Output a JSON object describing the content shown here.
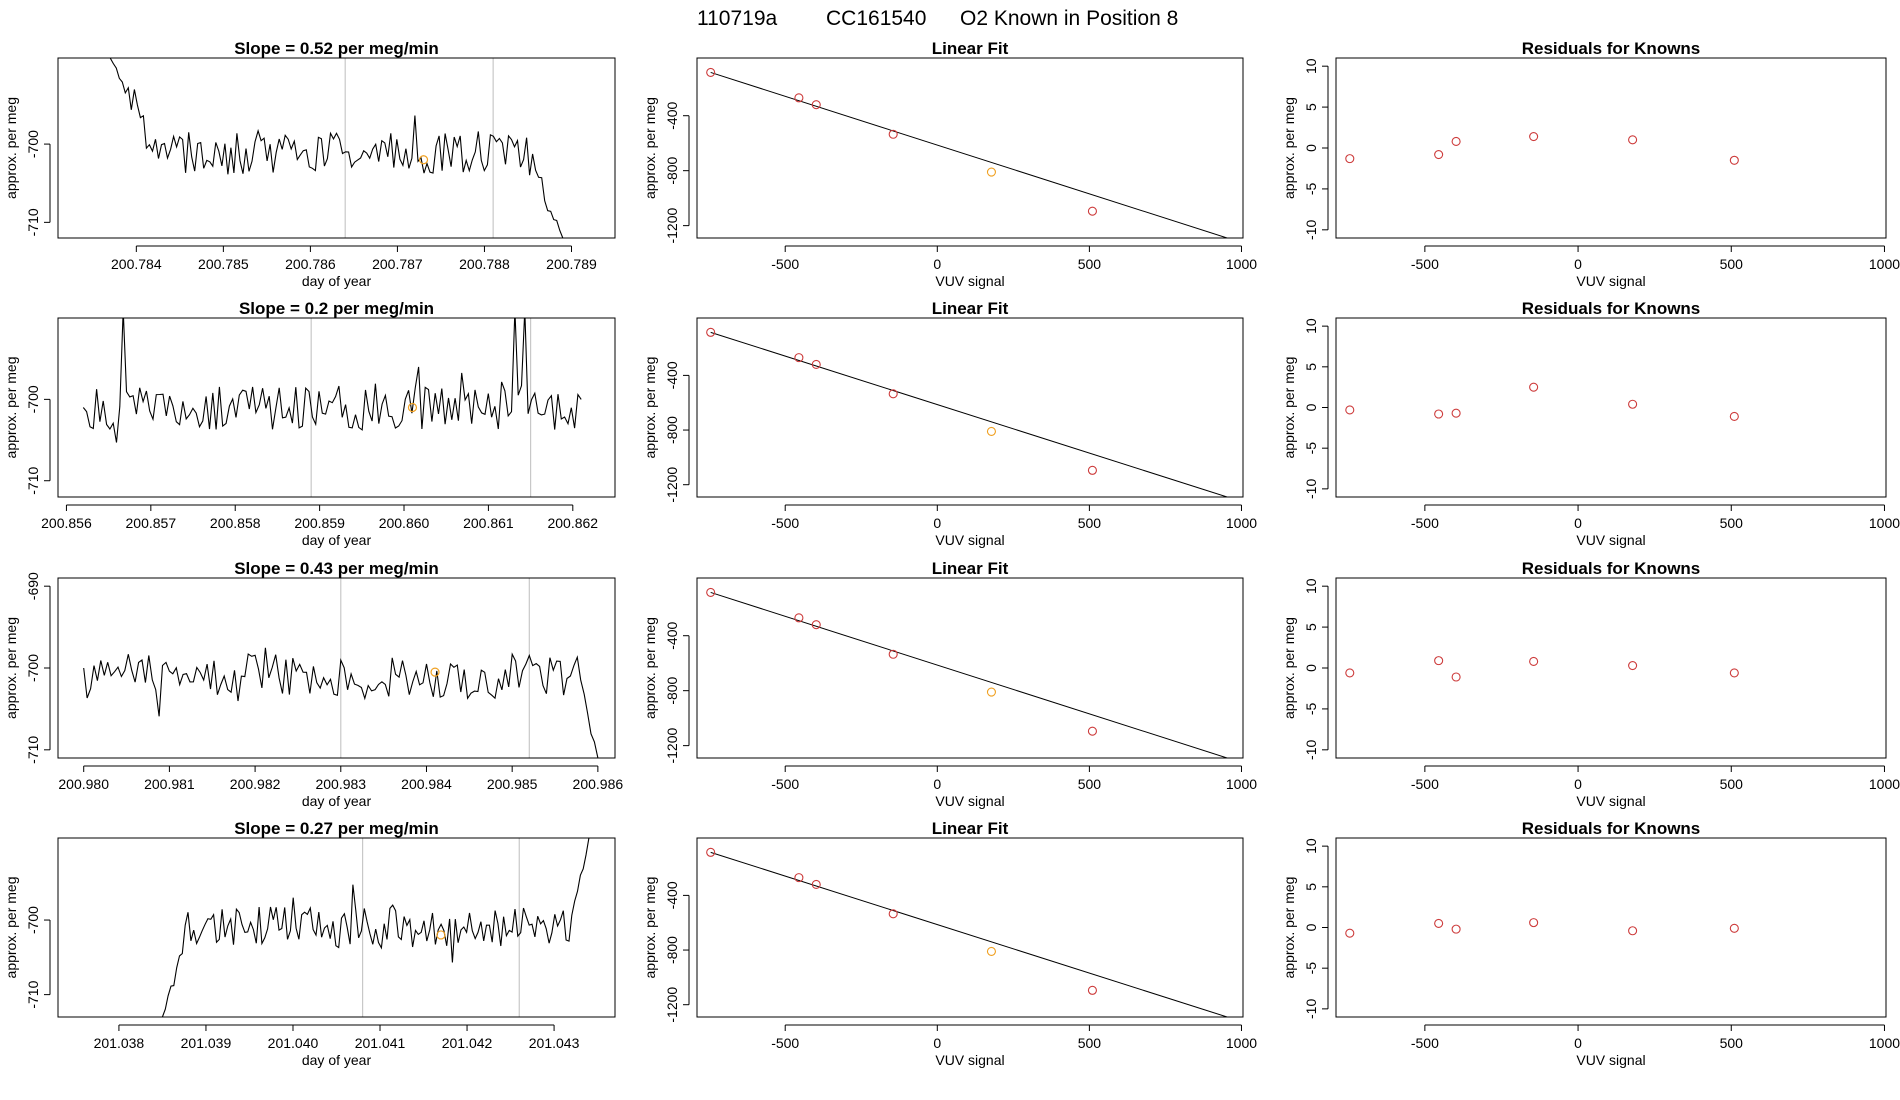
{
  "header": {
    "run_id": "110719a",
    "cylinder": "CC161540",
    "label": "O2 Known in Position  8"
  },
  "colors": {
    "line": "#000000",
    "point": "#cd3b3b",
    "known": "#f0a020",
    "marker": "#c8c8c8",
    "frame": "#000000"
  },
  "chart_data": [
    {
      "row": 1,
      "type": "line",
      "title": "Slope =  0.52  per meg/min",
      "xlabel": "day of year",
      "ylabel": "approx. per meg",
      "xlim": [
        200.7831,
        200.7895
      ],
      "ylim": [
        -712,
        -689
      ],
      "xticks": [
        "200.784",
        "200.785",
        "200.786",
        "200.787",
        "200.788",
        "200.789"
      ],
      "xtick_values": [
        200.784,
        200.785,
        200.786,
        200.787,
        200.788,
        200.789
      ],
      "yticks": [
        "-700",
        "-710"
      ],
      "ytick_values": [
        -700,
        -710
      ],
      "series_x": [
        200.7837,
        200.7889
      ],
      "start_value": -689,
      "end_value": -712,
      "shape": "drop-in-flat-drop",
      "noise_seed": 3,
      "markers": [
        200.7864,
        200.7881
      ],
      "highlight": {
        "x": 200.7873,
        "y": -702
      }
    },
    {
      "row": 1,
      "type": "scatter",
      "title": "Linear Fit",
      "xlabel": "VUV signal",
      "ylabel": "approx. per meg",
      "xlim": [
        -790,
        1005
      ],
      "ylim": [
        -1290,
        20
      ],
      "xticks": [
        "-500",
        "0",
        "500",
        "1000"
      ],
      "xtick_values": [
        -500,
        0,
        500,
        1000
      ],
      "yticks": [
        "-400",
        "-800",
        "-1200"
      ],
      "ytick_values": [
        -400,
        -800,
        -1200
      ],
      "x": [
        -745,
        -455,
        -398,
        -145,
        178,
        510
      ],
      "y": [
        -85,
        -270,
        -320,
        -535,
        -810,
        -1095
      ],
      "known_index": 4,
      "fit_line": {
        "x": [
          -745,
          960
        ],
        "y": [
          -85,
          -1295
        ]
      }
    },
    {
      "row": 1,
      "type": "scatter",
      "title": "Residuals for Knowns",
      "xlabel": "VUV signal",
      "ylabel": "approx. per meg",
      "xlim": [
        -790,
        1005
      ],
      "ylim": [
        -11,
        11
      ],
      "xticks": [
        "-500",
        "0",
        "500",
        "1000"
      ],
      "xtick_values": [
        -500,
        0,
        500,
        1000
      ],
      "yticks": [
        "10",
        "5",
        "0",
        "-5",
        "-10"
      ],
      "ytick_values": [
        10,
        5,
        0,
        -5,
        -10
      ],
      "x": [
        -745,
        -455,
        -398,
        -145,
        178,
        510
      ],
      "y": [
        -1.3,
        -0.8,
        0.8,
        1.4,
        1.0,
        -1.5
      ],
      "known_index": -1
    },
    {
      "row": 2,
      "type": "line",
      "title": "Slope =  0.2  per meg/min",
      "xlabel": "day of year",
      "ylabel": "approx. per meg",
      "xlim": [
        200.8559,
        200.8625
      ],
      "ylim": [
        -712,
        -690
      ],
      "xticks": [
        "200.856",
        "200.857",
        "200.858",
        "200.859",
        "200.860",
        "200.861",
        "200.862"
      ],
      "xtick_values": [
        200.856,
        200.857,
        200.858,
        200.859,
        200.86,
        200.861,
        200.862
      ],
      "yticks": [
        "-700",
        "-710"
      ],
      "ytick_values": [
        -700,
        -710
      ],
      "series_x": [
        200.8562,
        200.8621
      ],
      "start_value": -701,
      "end_value": -700,
      "shape": "noisy-spikes",
      "noise_seed": 7,
      "markers": [
        200.8589,
        200.8615
      ],
      "highlight": {
        "x": 200.8601,
        "y": -701
      }
    },
    {
      "row": 2,
      "type": "scatter",
      "title": "Linear Fit",
      "xlabel": "VUV signal",
      "ylabel": "approx. per meg",
      "xlim": [
        -790,
        1005
      ],
      "ylim": [
        -1290,
        20
      ],
      "xticks": [
        "-500",
        "0",
        "500",
        "1000"
      ],
      "xtick_values": [
        -500,
        0,
        500,
        1000
      ],
      "yticks": [
        "-400",
        "-800",
        "-1200"
      ],
      "ytick_values": [
        -400,
        -800,
        -1200
      ],
      "x": [
        -745,
        -455,
        -398,
        -145,
        178,
        510
      ],
      "y": [
        -85,
        -270,
        -320,
        -535,
        -810,
        -1095
      ],
      "known_index": 4,
      "fit_line": {
        "x": [
          -745,
          960
        ],
        "y": [
          -85,
          -1295
        ]
      }
    },
    {
      "row": 2,
      "type": "scatter",
      "title": "Residuals for Knowns",
      "xlabel": "VUV signal",
      "ylabel": "approx. per meg",
      "xlim": [
        -790,
        1005
      ],
      "ylim": [
        -11,
        11
      ],
      "xticks": [
        "-500",
        "0",
        "500",
        "1000"
      ],
      "xtick_values": [
        -500,
        0,
        500,
        1000
      ],
      "yticks": [
        "10",
        "5",
        "0",
        "-5",
        "-10"
      ],
      "ytick_values": [
        10,
        5,
        0,
        -5,
        -10
      ],
      "x": [
        -745,
        -455,
        -398,
        -145,
        178,
        510
      ],
      "y": [
        -0.3,
        -0.8,
        -0.7,
        2.5,
        0.4,
        -1.1
      ],
      "known_index": -1
    },
    {
      "row": 3,
      "type": "line",
      "title": "Slope =  0.43  per meg/min",
      "xlabel": "day of year",
      "ylabel": "approx. per meg",
      "xlim": [
        200.9797,
        200.9862
      ],
      "ylim": [
        -711,
        -689
      ],
      "xticks": [
        "200.980",
        "200.981",
        "200.982",
        "200.983",
        "200.984",
        "200.985",
        "200.986"
      ],
      "xtick_values": [
        200.98,
        200.981,
        200.982,
        200.983,
        200.984,
        200.985,
        200.986
      ],
      "yticks": [
        "-690",
        "-700",
        "-710"
      ],
      "ytick_values": [
        -690,
        -700,
        -710
      ],
      "series_x": [
        200.98,
        200.986
      ],
      "start_value": -700,
      "end_value": -711,
      "shape": "flat-drop",
      "noise_seed": 11,
      "markers": [
        200.983,
        200.9852
      ],
      "highlight": {
        "x": 200.9841,
        "y": -700.5
      }
    },
    {
      "row": 3,
      "type": "scatter",
      "title": "Linear Fit",
      "xlabel": "VUV signal",
      "ylabel": "approx. per meg",
      "xlim": [
        -790,
        1005
      ],
      "ylim": [
        -1290,
        20
      ],
      "xticks": [
        "-500",
        "0",
        "500",
        "1000"
      ],
      "xtick_values": [
        -500,
        0,
        500,
        1000
      ],
      "yticks": [
        "-400",
        "-800",
        "-1200"
      ],
      "ytick_values": [
        -400,
        -800,
        -1200
      ],
      "x": [
        -745,
        -455,
        -398,
        -145,
        178,
        510
      ],
      "y": [
        -85,
        -270,
        -320,
        -535,
        -810,
        -1095
      ],
      "known_index": 4,
      "fit_line": {
        "x": [
          -745,
          960
        ],
        "y": [
          -85,
          -1295
        ]
      }
    },
    {
      "row": 3,
      "type": "scatter",
      "title": "Residuals for Knowns",
      "xlabel": "VUV signal",
      "ylabel": "approx. per meg",
      "xlim": [
        -790,
        1005
      ],
      "ylim": [
        -11,
        11
      ],
      "xticks": [
        "-500",
        "0",
        "500",
        "1000"
      ],
      "xtick_values": [
        -500,
        0,
        500,
        1000
      ],
      "yticks": [
        "10",
        "5",
        "0",
        "-5",
        "-10"
      ],
      "ytick_values": [
        10,
        5,
        0,
        -5,
        -10
      ],
      "x": [
        -745,
        -455,
        -398,
        -145,
        178,
        510
      ],
      "y": [
        -0.6,
        0.9,
        -1.1,
        0.8,
        0.3,
        -0.6
      ],
      "known_index": -1
    },
    {
      "row": 4,
      "type": "line",
      "title": "Slope =  0.27  per meg/min",
      "xlabel": "day of year",
      "ylabel": "approx. per meg",
      "xlim": [
        201.0373,
        201.0437
      ],
      "ylim": [
        -713,
        -689
      ],
      "xticks": [
        "201.038",
        "201.039",
        "201.040",
        "201.041",
        "201.042",
        "201.043"
      ],
      "xtick_values": [
        201.038,
        201.039,
        201.04,
        201.041,
        201.042,
        201.043
      ],
      "yticks": [
        "-700",
        "-710"
      ],
      "ytick_values": [
        -700,
        -710
      ],
      "series_x": [
        201.0385,
        201.0434
      ],
      "start_value": -713,
      "end_value": -689,
      "shape": "rise-flat-rise",
      "noise_seed": 19,
      "markers": [
        201.0408,
        201.0426
      ],
      "highlight": {
        "x": 201.0417,
        "y": -702
      }
    },
    {
      "row": 4,
      "type": "scatter",
      "title": "Linear Fit",
      "xlabel": "VUV signal",
      "ylabel": "approx. per meg",
      "xlim": [
        -790,
        1005
      ],
      "ylim": [
        -1290,
        20
      ],
      "xticks": [
        "-500",
        "0",
        "500",
        "1000"
      ],
      "xtick_values": [
        -500,
        0,
        500,
        1000
      ],
      "yticks": [
        "-400",
        "-800",
        "-1200"
      ],
      "ytick_values": [
        -400,
        -800,
        -1200
      ],
      "x": [
        -745,
        -455,
        -398,
        -145,
        178,
        510
      ],
      "y": [
        -85,
        -270,
        -320,
        -535,
        -810,
        -1095
      ],
      "known_index": 4,
      "fit_line": {
        "x": [
          -745,
          960
        ],
        "y": [
          -85,
          -1295
        ]
      }
    },
    {
      "row": 4,
      "type": "scatter",
      "title": "Residuals for Knowns",
      "xlabel": "VUV signal",
      "ylabel": "approx. per meg",
      "xlim": [
        -790,
        1005
      ],
      "ylim": [
        -11,
        11
      ],
      "xticks": [
        "-500",
        "0",
        "500",
        "1000"
      ],
      "xtick_values": [
        -500,
        0,
        500,
        1000
      ],
      "yticks": [
        "10",
        "5",
        "0",
        "-5",
        "-10"
      ],
      "ytick_values": [
        10,
        5,
        0,
        -5,
        -10
      ],
      "x": [
        -745,
        -455,
        -398,
        -145,
        178,
        510
      ],
      "y": [
        -0.7,
        0.5,
        -0.2,
        0.6,
        -0.4,
        -0.1
      ],
      "known_index": -1
    }
  ]
}
